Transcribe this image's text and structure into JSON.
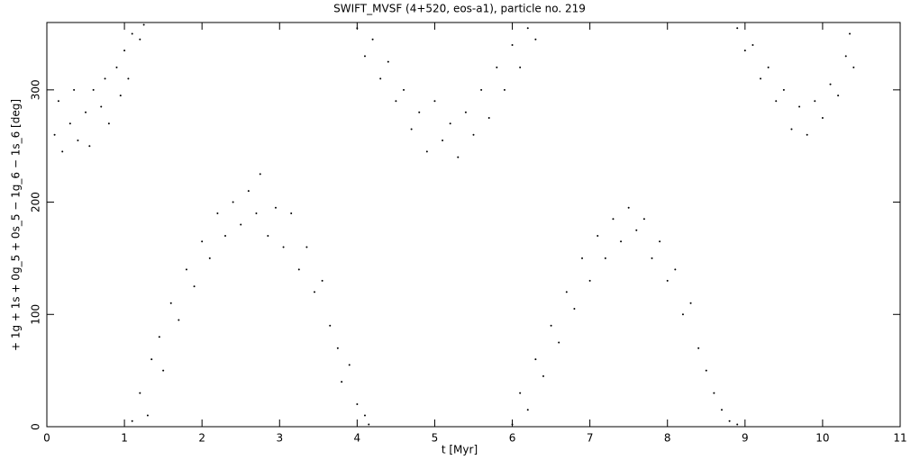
{
  "chart_data": {
    "type": "scatter",
    "title": "SWIFT_MVSF (4+520, eos-a1), particle no. 219",
    "x_label": "t [Myr]",
    "y_label": "+ 1g + 1s + 0g_5 + 0s_5 − 1g_6 − 1s_6 [deg]",
    "color": "#000000",
    "xlim": [
      0,
      11
    ],
    "xticks": [
      0,
      1,
      2,
      3,
      4,
      5,
      6,
      7,
      8,
      9,
      10,
      11
    ],
    "ylim": [
      0,
      360
    ],
    "yticks": [
      0,
      100,
      200,
      300
    ],
    "x": [
      0.1,
      0.15,
      0.2,
      0.3,
      0.35,
      0.4,
      0.5,
      0.55,
      0.6,
      0.7,
      0.75,
      0.8,
      0.9,
      0.95,
      1.0,
      1.05,
      1.1,
      1.2,
      1.25,
      1.1,
      1.2,
      1.3,
      1.35,
      1.45,
      1.5,
      1.6,
      1.7,
      1.8,
      1.9,
      2.0,
      2.1,
      2.2,
      2.3,
      2.4,
      2.5,
      2.6,
      2.7,
      2.75,
      2.85,
      2.95,
      3.05,
      3.15,
      3.25,
      3.35,
      3.45,
      3.55,
      3.65,
      3.75,
      3.8,
      3.9,
      4.0,
      4.1,
      4.15,
      4.0,
      4.1,
      4.2,
      4.3,
      4.4,
      4.5,
      4.6,
      4.7,
      4.8,
      4.9,
      5.0,
      5.1,
      5.2,
      5.3,
      5.4,
      5.5,
      5.6,
      5.7,
      5.8,
      5.9,
      6.0,
      6.1,
      6.2,
      6.3,
      6.0,
      6.1,
      6.2,
      6.3,
      6.4,
      6.5,
      6.6,
      6.7,
      6.8,
      6.9,
      7.0,
      7.1,
      7.2,
      7.3,
      7.4,
      7.5,
      7.6,
      7.7,
      7.8,
      7.9,
      8.0,
      8.1,
      8.2,
      8.3,
      8.4,
      8.5,
      8.6,
      8.7,
      8.8,
      8.9,
      8.9,
      9.0,
      9.1,
      9.2,
      9.3,
      9.4,
      9.5,
      9.6,
      9.7,
      9.8,
      9.9,
      10.0,
      10.1,
      10.2,
      10.3,
      10.35,
      10.4
    ],
    "values": [
      260,
      290,
      245,
      270,
      300,
      255,
      280,
      250,
      300,
      285,
      310,
      270,
      320,
      295,
      335,
      310,
      350,
      345,
      358,
      5,
      30,
      10,
      60,
      80,
      50,
      110,
      95,
      140,
      125,
      165,
      150,
      190,
      170,
      200,
      180,
      210,
      190,
      225,
      170,
      195,
      160,
      190,
      140,
      160,
      120,
      130,
      90,
      70,
      40,
      55,
      20,
      10,
      2,
      355,
      330,
      345,
      310,
      325,
      290,
      300,
      265,
      280,
      245,
      290,
      255,
      270,
      240,
      280,
      260,
      300,
      275,
      320,
      300,
      340,
      320,
      355,
      345,
      2,
      30,
      15,
      60,
      45,
      90,
      75,
      120,
      105,
      150,
      130,
      170,
      150,
      185,
      165,
      195,
      175,
      185,
      150,
      165,
      130,
      140,
      100,
      110,
      70,
      50,
      30,
      15,
      5,
      2,
      355,
      335,
      340,
      310,
      320,
      290,
      300,
      265,
      285,
      260,
      290,
      275,
      305,
      295,
      330,
      350,
      320
    ]
  }
}
